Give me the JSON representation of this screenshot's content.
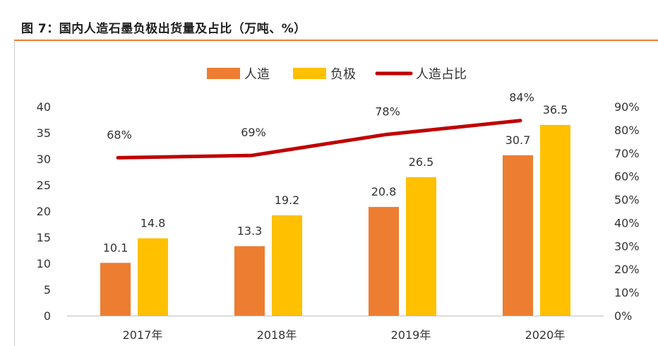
{
  "figure_title": "图 7：国内人造石墨负极出货量及占比（万吨、%）",
  "colors": {
    "artificial": "#ED7D31",
    "anode": "#FFC000",
    "share": "#C00000",
    "rule": "#ED7D31"
  },
  "chart_data": {
    "type": "bar",
    "categories": [
      "2017年",
      "2018年",
      "2019年",
      "2020年"
    ],
    "series": [
      {
        "name": "人造",
        "type": "bar",
        "axis": "left",
        "values": [
          10.1,
          13.3,
          20.8,
          30.7
        ]
      },
      {
        "name": "负极",
        "type": "bar",
        "axis": "left",
        "values": [
          14.8,
          19.2,
          26.5,
          36.5
        ]
      },
      {
        "name": "人造占比",
        "type": "line",
        "axis": "right",
        "values": [
          68,
          69,
          78,
          84
        ]
      }
    ],
    "data_labels": {
      "人造": [
        "10.1",
        "13.3",
        "20.8",
        "30.7"
      ],
      "负极": [
        "14.8",
        "19.2",
        "26.5",
        "36.5"
      ],
      "人造占比": [
        "68%",
        "69%",
        "78%",
        "84%"
      ]
    },
    "y_left": {
      "ylim": [
        0,
        40
      ],
      "ticks": [
        "0",
        "5",
        "10",
        "15",
        "20",
        "25",
        "30",
        "35",
        "40"
      ]
    },
    "y_right": {
      "ylim": [
        0,
        90
      ],
      "ticks": [
        "0%",
        "10%",
        "20%",
        "30%",
        "40%",
        "50%",
        "60%",
        "70%",
        "80%",
        "90%"
      ]
    },
    "grid": false,
    "legend_position": "top-center"
  }
}
